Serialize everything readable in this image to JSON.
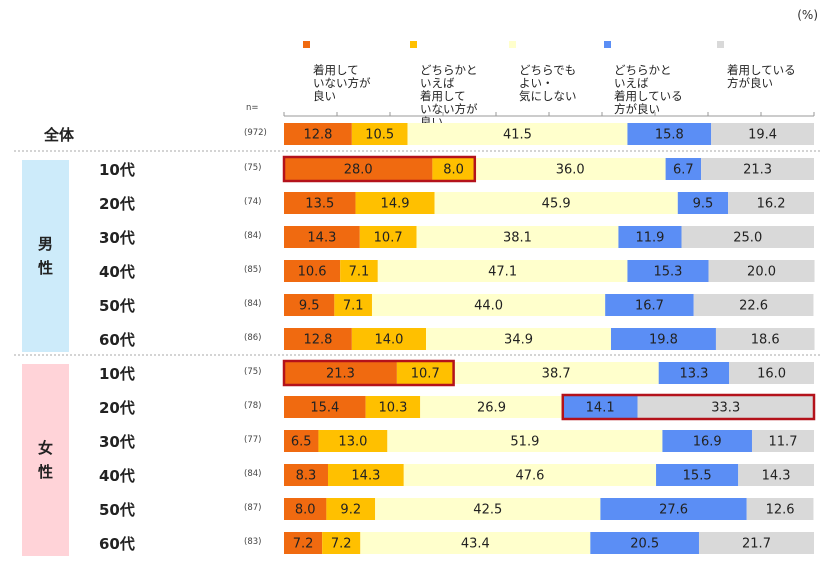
{
  "unit_label": "(%)",
  "n_header": "n=",
  "chart_data": {
    "type": "stacked-bar-horizontal",
    "title": "",
    "unit": "%",
    "xlim": [
      0,
      100
    ],
    "legend": [
      {
        "name": "着用していない方が良い",
        "text": "着用して\nいない方が\n良い",
        "color": "#F06A10"
      },
      {
        "name": "どちらかといえば着用していない方が良い",
        "text": "どちらかと\nいえば\n着用して\nいない方が\n良い",
        "color": "#FFC000"
      },
      {
        "name": "どちらでもよい・気にしない",
        "text": "どちらでも\nよい・\n気にしない",
        "color": "#FFFFCC"
      },
      {
        "name": "どちらかといえば着用している方が良い",
        "text": "どちらかと\nいえば\n着用している\n方が良い",
        "color": "#5B8EF5"
      },
      {
        "name": "着用している方が良い",
        "text": "着用している\n方が良い",
        "color": "#D9D9D9"
      }
    ],
    "groups": [
      {
        "name": "",
        "label": "",
        "color": ""
      },
      {
        "name": "男性",
        "label": "男\n性",
        "color": "#CDEBFA"
      },
      {
        "name": "女性",
        "label": "女\n性",
        "color": "#FFD3D8"
      }
    ],
    "rows": [
      {
        "group": 0,
        "label": "全体",
        "n": "(972)",
        "values": [
          12.8,
          10.5,
          41.5,
          15.8,
          19.4
        ],
        "highlight": null
      },
      {
        "group": 1,
        "label": "10代",
        "n": "(75)",
        "values": [
          28.0,
          8.0,
          36.0,
          6.7,
          21.3
        ],
        "highlight": [
          0,
          1
        ]
      },
      {
        "group": 1,
        "label": "20代",
        "n": "(74)",
        "values": [
          13.5,
          14.9,
          45.9,
          9.5,
          16.2
        ],
        "highlight": null
      },
      {
        "group": 1,
        "label": "30代",
        "n": "(84)",
        "values": [
          14.3,
          10.7,
          38.1,
          11.9,
          25.0
        ],
        "highlight": null
      },
      {
        "group": 1,
        "label": "40代",
        "n": "(85)",
        "values": [
          10.6,
          7.1,
          47.1,
          15.3,
          20.0
        ],
        "highlight": null
      },
      {
        "group": 1,
        "label": "50代",
        "n": "(84)",
        "values": [
          9.5,
          7.1,
          44.0,
          16.7,
          22.6
        ],
        "highlight": null
      },
      {
        "group": 1,
        "label": "60代",
        "n": "(86)",
        "values": [
          12.8,
          14.0,
          34.9,
          19.8,
          18.6
        ],
        "highlight": null
      },
      {
        "group": 2,
        "label": "10代",
        "n": "(75)",
        "values": [
          21.3,
          10.7,
          38.7,
          13.3,
          16.0
        ],
        "highlight": [
          0,
          1
        ]
      },
      {
        "group": 2,
        "label": "20代",
        "n": "(78)",
        "values": [
          15.4,
          10.3,
          26.9,
          14.1,
          33.3
        ],
        "highlight": [
          3,
          4
        ]
      },
      {
        "group": 2,
        "label": "30代",
        "n": "(77)",
        "values": [
          6.5,
          13.0,
          51.9,
          16.9,
          11.7
        ],
        "highlight": null
      },
      {
        "group": 2,
        "label": "40代",
        "n": "(84)",
        "values": [
          8.3,
          14.3,
          47.6,
          15.5,
          14.3
        ],
        "highlight": null
      },
      {
        "group": 2,
        "label": "50代",
        "n": "(87)",
        "values": [
          8.0,
          9.2,
          42.5,
          27.6,
          12.6
        ],
        "highlight": null
      },
      {
        "group": 2,
        "label": "60代",
        "n": "(83)",
        "values": [
          7.2,
          7.2,
          43.4,
          20.5,
          21.7
        ],
        "highlight": null
      }
    ]
  }
}
